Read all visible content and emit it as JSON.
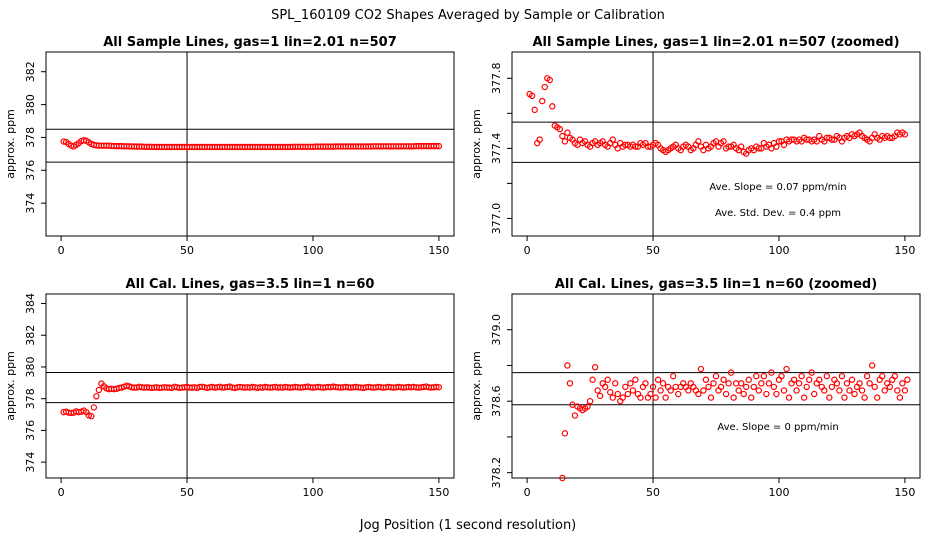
{
  "page": {
    "title": "SPL_160109  CO2 Shapes Averaged by Sample or Calibration",
    "xlabel": "Jog Position (1 second resolution)"
  },
  "colors": {
    "points": "#ff0000",
    "axes": "#000000",
    "background": "#ffffff"
  },
  "chart_data": [
    {
      "type": "scatter",
      "title": "All Sample Lines, gas=1 lin=2.01 n=507",
      "ylabel": "approx. ppm",
      "xlim": [
        -6,
        156
      ],
      "ylim": [
        372,
        383.2
      ],
      "xticks": [
        0,
        50,
        100,
        150
      ],
      "yticks": [
        374,
        376,
        378,
        380,
        382
      ],
      "ytick_labels": [
        "374",
        "376",
        "378",
        "380",
        "382"
      ],
      "hlines": [
        378.5,
        376.5
      ],
      "vline": 50,
      "notes": [],
      "series": [
        {
          "x_start": 1,
          "x_step": 1,
          "values": [
            377.75,
            377.72,
            377.6,
            377.5,
            377.45,
            377.55,
            377.65,
            377.78,
            377.82,
            377.8,
            377.7,
            377.6,
            377.55,
            377.52,
            377.5,
            377.5,
            377.5,
            377.5,
            377.5,
            377.48,
            377.48,
            377.47,
            377.47,
            377.47,
            377.46,
            377.46,
            377.46,
            377.45,
            377.45,
            377.44,
            377.44,
            377.44,
            377.43,
            377.43,
            377.43,
            377.43,
            377.42,
            377.42,
            377.42,
            377.42,
            377.42,
            377.42,
            377.42,
            377.42,
            377.42,
            377.42,
            377.42,
            377.42,
            377.42,
            377.42,
            377.42,
            377.42,
            377.42,
            377.42,
            377.42,
            377.42,
            377.42,
            377.42,
            377.42,
            377.42,
            377.42,
            377.42,
            377.42,
            377.42,
            377.42,
            377.42,
            377.42,
            377.42,
            377.42,
            377.42,
            377.42,
            377.42,
            377.42,
            377.42,
            377.42,
            377.42,
            377.42,
            377.42,
            377.42,
            377.42,
            377.42,
            377.42,
            377.42,
            377.42,
            377.42,
            377.42,
            377.42,
            377.42,
            377.42,
            377.42,
            377.42,
            377.43,
            377.43,
            377.43,
            377.43,
            377.43,
            377.43,
            377.43,
            377.43,
            377.43,
            377.44,
            377.44,
            377.44,
            377.44,
            377.44,
            377.44,
            377.44,
            377.44,
            377.45,
            377.45,
            377.45,
            377.45,
            377.45,
            377.45,
            377.45,
            377.45,
            377.45,
            377.45,
            377.45,
            377.45,
            377.45,
            377.45,
            377.45,
            377.46,
            377.46,
            377.46,
            377.46,
            377.46,
            377.46,
            377.46,
            377.46,
            377.46,
            377.46,
            377.46,
            377.46,
            377.46,
            377.46,
            377.46,
            377.46,
            377.46,
            377.47,
            377.47,
            377.47,
            377.47,
            377.47,
            377.47,
            377.47,
            377.47,
            377.47,
            377.47
          ]
        }
      ]
    },
    {
      "type": "scatter",
      "title": "All Sample Lines, gas=1 lin=2.01 n=507 (zoomed)",
      "ylabel": "approx. ppm",
      "xlim": [
        -6,
        156
      ],
      "ylim": [
        376.9,
        377.95
      ],
      "xticks": [
        0,
        50,
        100,
        150
      ],
      "yticks": [
        377.0,
        377.2,
        377.4,
        377.6,
        377.8
      ],
      "ytick_labels": [
        "377.0",
        "",
        "377.4",
        "",
        "377.8"
      ],
      "hlines": [
        377.55,
        377.32
      ],
      "vline": 50,
      "notes": [
        "Ave. Slope =  0.07  ppm/min",
        "Ave. Std. Dev. =  0.4  ppm"
      ],
      "series": [
        {
          "x_start": 1,
          "x_step": 1,
          "values": [
            377.71,
            377.7,
            377.62,
            377.43,
            377.45,
            377.67,
            377.75,
            377.8,
            377.79,
            377.64,
            377.53,
            377.52,
            377.51,
            377.47,
            377.44,
            377.49,
            377.46,
            377.45,
            377.43,
            377.42,
            377.45,
            377.43,
            377.44,
            377.42,
            377.41,
            377.43,
            377.44,
            377.42,
            377.43,
            377.44,
            377.42,
            377.41,
            377.43,
            377.45,
            377.42,
            377.4,
            377.43,
            377.41,
            377.42,
            377.42,
            377.41,
            377.42,
            377.41,
            377.41,
            377.43,
            377.42,
            377.43,
            377.41,
            377.41,
            377.42,
            377.43,
            377.42,
            377.4,
            377.39,
            377.38,
            377.39,
            377.4,
            377.41,
            377.42,
            377.4,
            377.39,
            377.41,
            377.42,
            377.41,
            377.39,
            377.4,
            377.42,
            377.44,
            377.41,
            377.39,
            377.42,
            377.4,
            377.41,
            377.43,
            377.44,
            377.41,
            377.43,
            377.44,
            377.4,
            377.41,
            377.41,
            377.42,
            377.4,
            377.39,
            377.41,
            377.38,
            377.37,
            377.39,
            377.4,
            377.39,
            377.41,
            377.4,
            377.4,
            377.43,
            377.41,
            377.42,
            377.4,
            377.43,
            377.41,
            377.44,
            377.44,
            377.42,
            377.45,
            377.44,
            377.45,
            377.45,
            377.44,
            377.45,
            377.44,
            377.46,
            377.45,
            377.45,
            377.44,
            377.45,
            377.44,
            377.47,
            377.45,
            377.44,
            377.46,
            377.46,
            377.45,
            377.45,
            377.47,
            377.46,
            377.44,
            377.46,
            377.47,
            377.46,
            377.48,
            377.47,
            377.48,
            377.49,
            377.47,
            377.46,
            377.45,
            377.44,
            377.46,
            377.48,
            377.46,
            377.45,
            377.47,
            377.46,
            377.47,
            377.46,
            377.46,
            377.47,
            377.49,
            377.48,
            377.49,
            377.48
          ]
        }
      ]
    },
    {
      "type": "scatter",
      "title": "All Cal. Lines, gas=3.5 lin=1 n=60",
      "ylabel": "approx. ppm",
      "xlim": [
        -6,
        156
      ],
      "ylim": [
        373,
        384.6
      ],
      "xticks": [
        0,
        50,
        100,
        150
      ],
      "yticks": [
        374,
        376,
        378,
        380,
        382,
        384
      ],
      "ytick_labels": [
        "374",
        "376",
        "378",
        "380",
        "382",
        "384"
      ],
      "hlines": [
        379.65,
        377.75
      ],
      "vline": 50,
      "notes": [],
      "series": [
        {
          "x_start": 1,
          "x_step": 1,
          "values": [
            377.15,
            377.18,
            377.12,
            377.1,
            377.12,
            377.2,
            377.15,
            377.18,
            377.25,
            377.15,
            376.95,
            376.9,
            377.45,
            378.15,
            378.55,
            378.95,
            378.78,
            378.65,
            378.6,
            378.62,
            378.6,
            378.62,
            378.68,
            378.7,
            378.75,
            378.82,
            378.78,
            378.72,
            378.7,
            378.7,
            378.75,
            378.72,
            378.7,
            378.72,
            378.7,
            378.68,
            378.7,
            378.72,
            378.68,
            378.7,
            378.72,
            378.7,
            378.7,
            378.68,
            378.75,
            378.72,
            378.68,
            378.7,
            378.72,
            378.74,
            378.7,
            378.7,
            378.72,
            378.68,
            378.74,
            378.75,
            378.72,
            378.68,
            378.72,
            378.74,
            378.7,
            378.72,
            378.75,
            378.7,
            378.72,
            378.74,
            378.76,
            378.7,
            378.68,
            378.72,
            378.74,
            378.72,
            378.7,
            378.72,
            378.7,
            378.74,
            378.72,
            378.68,
            378.72,
            378.7,
            378.74,
            378.72,
            378.7,
            378.72,
            378.74,
            378.7,
            378.72,
            378.7,
            378.74,
            378.72,
            378.7,
            378.72,
            378.74,
            378.72,
            378.7,
            378.72,
            378.74,
            378.76,
            378.72,
            378.7,
            378.72,
            378.74,
            378.72,
            378.7,
            378.72,
            378.74,
            378.72,
            378.76,
            378.74,
            378.72,
            378.7,
            378.72,
            378.74,
            378.72,
            378.7,
            378.72,
            378.74,
            378.72,
            378.7,
            378.68,
            378.72,
            378.74,
            378.72,
            378.7,
            378.72,
            378.74,
            378.72,
            378.7,
            378.72,
            378.74,
            378.72,
            378.7,
            378.72,
            378.74,
            378.72,
            378.7,
            378.72,
            378.74,
            378.72,
            378.74,
            378.72,
            378.7,
            378.72,
            378.74,
            378.76,
            378.72,
            378.7,
            378.72,
            378.74,
            378.72
          ]
        }
      ]
    },
    {
      "type": "scatter",
      "title": "All Cal. Lines, gas=3.5 lin=1 n=60 (zoomed)",
      "ylabel": "approx. ppm",
      "xlim": [
        -6,
        156
      ],
      "ylim": [
        378.17,
        379.2
      ],
      "xticks": [
        0,
        50,
        100,
        150
      ],
      "yticks": [
        378.2,
        378.4,
        378.6,
        378.8,
        379.0
      ],
      "ytick_labels": [
        "378.2",
        "",
        "378.6",
        "",
        "379.0"
      ],
      "hlines": [
        378.76,
        378.58
      ],
      "vline": 50,
      "notes": [
        "Ave. Slope =  0  ppm/min"
      ],
      "series": [
        {
          "x_start": 14,
          "x_step": 1,
          "values": [
            378.17,
            378.42,
            378.8,
            378.7,
            378.58,
            378.52,
            378.57,
            378.56,
            378.55,
            378.56,
            378.57,
            378.6,
            378.72,
            378.79,
            378.66,
            378.63,
            378.7,
            378.68,
            378.72,
            378.65,
            378.62,
            378.7,
            378.64,
            378.6,
            378.62,
            378.68,
            378.64,
            378.7,
            378.66,
            378.72,
            378.64,
            378.62,
            378.68,
            378.7,
            378.62,
            378.64,
            378.68,
            378.62,
            378.72,
            378.66,
            378.7,
            378.62,
            378.68,
            378.66,
            378.74,
            378.68,
            378.64,
            378.68,
            378.7,
            378.68,
            378.66,
            378.7,
            378.68,
            378.66,
            378.64,
            378.78,
            378.66,
            378.72,
            378.68,
            378.62,
            378.7,
            378.74,
            378.66,
            378.68,
            378.72,
            378.64,
            378.7,
            378.76,
            378.62,
            378.7,
            378.66,
            378.7,
            378.64,
            378.68,
            378.72,
            378.62,
            378.68,
            378.74,
            378.66,
            378.7,
            378.74,
            378.64,
            378.7,
            378.76,
            378.68,
            378.64,
            378.72,
            378.74,
            378.66,
            378.78,
            378.62,
            378.7,
            378.72,
            378.66,
            378.7,
            378.74,
            378.62,
            378.68,
            378.72,
            378.76,
            378.64,
            378.7,
            378.72,
            378.68,
            378.66,
            378.74,
            378.62,
            378.68,
            378.72,
            378.7,
            378.66,
            378.74,
            378.62,
            378.7,
            378.66,
            378.72,
            378.64,
            378.68,
            378.7,
            378.66,
            378.62,
            378.74,
            378.7,
            378.8,
            378.68,
            378.62,
            378.72,
            378.74,
            378.66,
            378.7,
            378.68,
            378.72,
            378.74,
            378.66,
            378.62,
            378.7,
            378.66,
            378.72
          ]
        }
      ]
    }
  ]
}
